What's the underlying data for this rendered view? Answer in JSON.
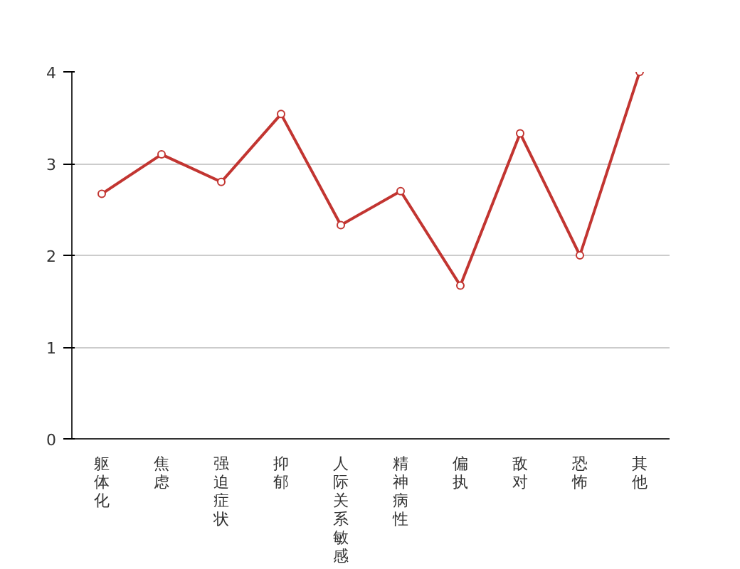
{
  "chart_data": {
    "type": "line",
    "categories": [
      "躯体化",
      "焦虑",
      "强迫症状",
      "抑郁",
      "人际关系敏感",
      "精神病性",
      "偏执",
      "敌对",
      "恐怖",
      "其他"
    ],
    "series": [
      {
        "color": "#c23531",
        "values": [
          2.67,
          3.1,
          2.8,
          3.54,
          2.33,
          2.7,
          1.67,
          3.33,
          2.0,
          4.0
        ]
      }
    ],
    "ylim": [
      0,
      4
    ],
    "yticks": [
      0,
      1,
      2,
      3,
      4
    ],
    "grid": "y",
    "marker": "circle",
    "line_style": "solid"
  }
}
